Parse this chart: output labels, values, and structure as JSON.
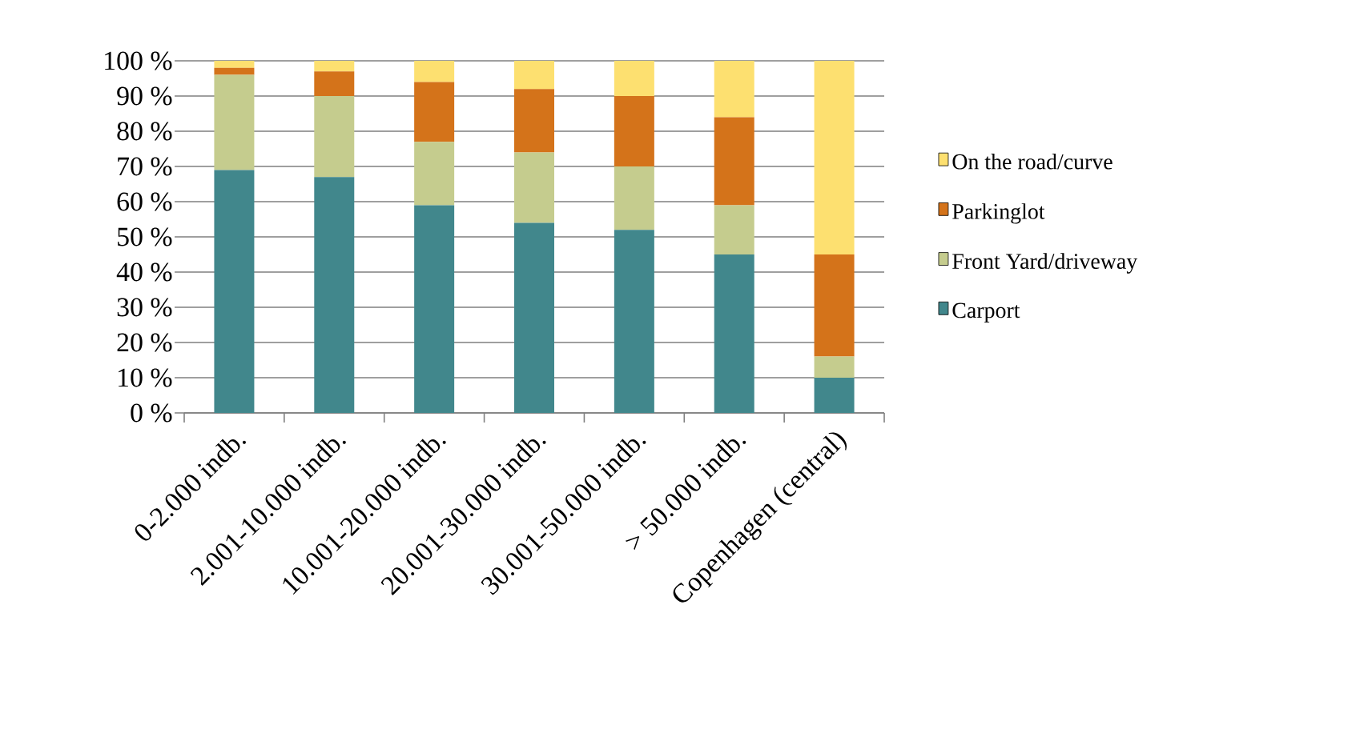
{
  "chart_data": {
    "type": "bar",
    "stacked": true,
    "categories": [
      "0-2.000 indb.",
      "2.001-10.000 indb.",
      "10.001-20.000 indb.",
      "20.001-30.000 indb.",
      "30.001-50.000 indb.",
      "> 50.000 indb.",
      "Copenhagen (central)"
    ],
    "series": [
      {
        "name": "Carport",
        "color": "#41878c",
        "values": [
          69,
          67,
          59,
          54,
          52,
          45,
          10
        ]
      },
      {
        "name": "Front Yard/driveway",
        "color": "#c5cc8e",
        "values": [
          27,
          23,
          18,
          20,
          18,
          14,
          6
        ]
      },
      {
        "name": "Parkinglot",
        "color": "#d4731a",
        "values": [
          2,
          7,
          17,
          18,
          20,
          25,
          29
        ]
      },
      {
        "name": "On the road/curve",
        "color": "#fde070",
        "values": [
          2,
          3,
          6,
          8,
          10,
          16,
          55
        ]
      }
    ],
    "ylim": [
      0,
      100
    ],
    "yticks": [
      {
        "value": 0,
        "label": "0 %"
      },
      {
        "value": 10,
        "label": "10 %"
      },
      {
        "value": 20,
        "label": "20 %"
      },
      {
        "value": 30,
        "label": "30 %"
      },
      {
        "value": 40,
        "label": "40 %"
      },
      {
        "value": 50,
        "label": "50 %"
      },
      {
        "value": 60,
        "label": "60 %"
      },
      {
        "value": 70,
        "label": "70 %"
      },
      {
        "value": 80,
        "label": "80 %"
      },
      {
        "value": 90,
        "label": "90 %"
      },
      {
        "value": 100,
        "label": "100 %"
      }
    ],
    "grid": "y",
    "legend": "right"
  }
}
